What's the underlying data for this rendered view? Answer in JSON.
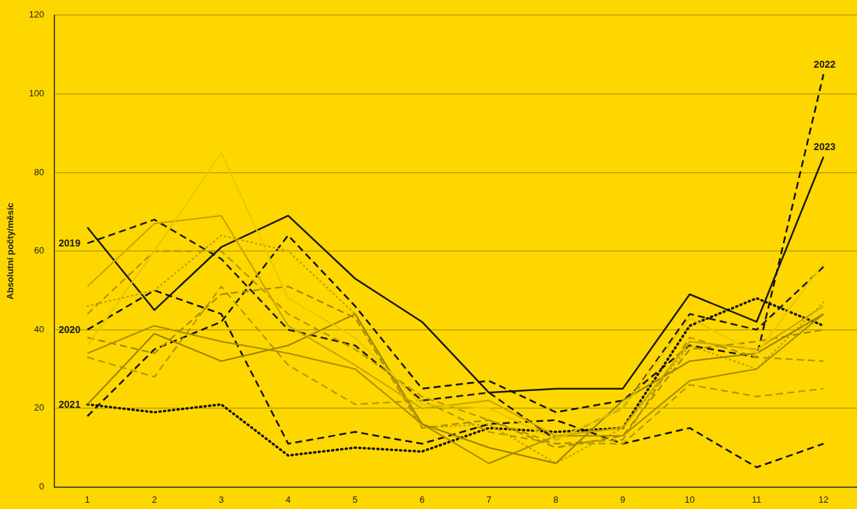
{
  "chart_data": {
    "type": "line",
    "ylabel": "Absolutní počty/měsíc",
    "categories": [
      "1",
      "2",
      "3",
      "4",
      "5",
      "6",
      "7",
      "8",
      "9",
      "10",
      "11",
      "12"
    ],
    "ylim": [
      0,
      120
    ],
    "yticks": [
      0,
      20,
      40,
      60,
      80,
      100,
      120
    ],
    "grid": "y",
    "legend": false,
    "marker": "none",
    "series": [
      {
        "color": "#e8c800",
        "line_style": "solid",
        "values": [
          36,
          60,
          85,
          48,
          38,
          21,
          20,
          12,
          20,
          43,
          34,
          57
        ]
      },
      {
        "color": "#c8a600",
        "line_style": "solid",
        "values": [
          51,
          67,
          69,
          41,
          31,
          20,
          22,
          13,
          15,
          37,
          35,
          46
        ]
      },
      {
        "color": "#9c8400",
        "line_style": "solid",
        "values": [
          21,
          39,
          32,
          36,
          44,
          16,
          10,
          6,
          22,
          32,
          34,
          44
        ]
      },
      {
        "color": "#a89000",
        "line_style": "solid",
        "values": [
          34,
          41,
          37,
          34,
          30,
          16,
          6,
          13,
          13,
          27,
          30,
          44
        ]
      },
      {
        "color": "#b09400",
        "line_style": "dashed",
        "values": [
          44,
          60,
          60,
          44,
          35,
          23,
          17,
          11,
          12,
          38,
          33,
          32
        ]
      },
      {
        "color": "#b8a000",
        "line_style": "dotted",
        "values": [
          46,
          50,
          64,
          60,
          44,
          15,
          16,
          6,
          15,
          36,
          30,
          47
        ]
      },
      {
        "color": "#a08800",
        "line_style": "dashed",
        "values": [
          38,
          34,
          49,
          51,
          43,
          15,
          17,
          10,
          13,
          35,
          37,
          40
        ]
      },
      {
        "color": "#b09800",
        "line_style": "dashed",
        "values": [
          33,
          28,
          51,
          31,
          21,
          22,
          14,
          11,
          11,
          26,
          23,
          25
        ]
      },
      {
        "color": "#1a1a1a",
        "line_style": "dashed",
        "values": [
          62,
          68,
          58,
          40,
          36,
          22,
          24,
          12,
          20,
          44,
          40,
          56
        ]
      },
      {
        "color": "#111111",
        "line_style": "dashed",
        "values": [
          40,
          50,
          44,
          11,
          14,
          11,
          16,
          17,
          11,
          15,
          5,
          11
        ]
      },
      {
        "color": "#111111",
        "line_style": "dotted",
        "values": [
          21,
          19,
          21,
          8,
          10,
          9,
          15,
          14,
          15,
          41,
          48,
          41
        ]
      },
      {
        "color": "#111111",
        "line_style": "dashed",
        "values": [
          18,
          35,
          42,
          64,
          46,
          25,
          27,
          19,
          22,
          36,
          33,
          105
        ]
      },
      {
        "color": "#1a1a10",
        "line_style": "solid",
        "values": [
          66,
          45,
          61,
          69,
          53,
          42,
          24,
          25,
          25,
          49,
          42,
          84
        ]
      }
    ],
    "annotations": [
      {
        "text": "2019",
        "x": "1",
        "y": 62
      },
      {
        "text": "2020",
        "x": "1",
        "y": 40
      },
      {
        "text": "2021",
        "x": "1",
        "y": 21
      },
      {
        "text": "2022",
        "x": "12",
        "y": 105
      },
      {
        "text": "2023",
        "x": "12",
        "y": 84
      }
    ]
  }
}
